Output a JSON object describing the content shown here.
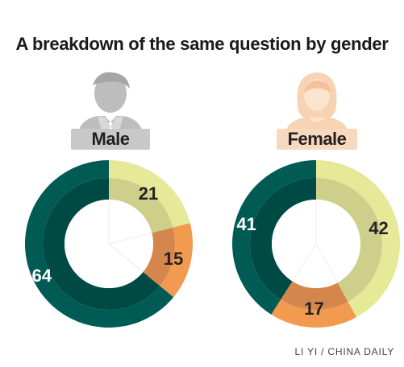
{
  "title": "A breakdown of the same question by gender",
  "credit": "LI YI / CHINA DAILY",
  "colors": {
    "male_figure": "#bdbdbd",
    "female_figure": "#f7d3b4",
    "male_banner": "#c8c8c8",
    "female_banner": "#f9d9be"
  },
  "chart_data": [
    {
      "type": "pie",
      "donut": true,
      "label": "Male",
      "icon": "male-person-icon",
      "slices": [
        {
          "value": 21,
          "color_outer": "#e6e997",
          "color_inner": "#cfcf8c"
        },
        {
          "value": 15,
          "color_outer": "#f29b50",
          "color_inner": "#d5864c"
        },
        {
          "value": 64,
          "color_outer": "#005b55",
          "color_inner": "#004a45"
        }
      ]
    },
    {
      "type": "pie",
      "donut": true,
      "label": "Female",
      "icon": "female-person-icon",
      "slices": [
        {
          "value": 42,
          "color_outer": "#e6e997",
          "color_inner": "#cfcf8c"
        },
        {
          "value": 17,
          "color_outer": "#f29b50",
          "color_inner": "#d5864c"
        },
        {
          "value": 41,
          "color_outer": "#005b55",
          "color_inner": "#004a45"
        }
      ]
    }
  ]
}
